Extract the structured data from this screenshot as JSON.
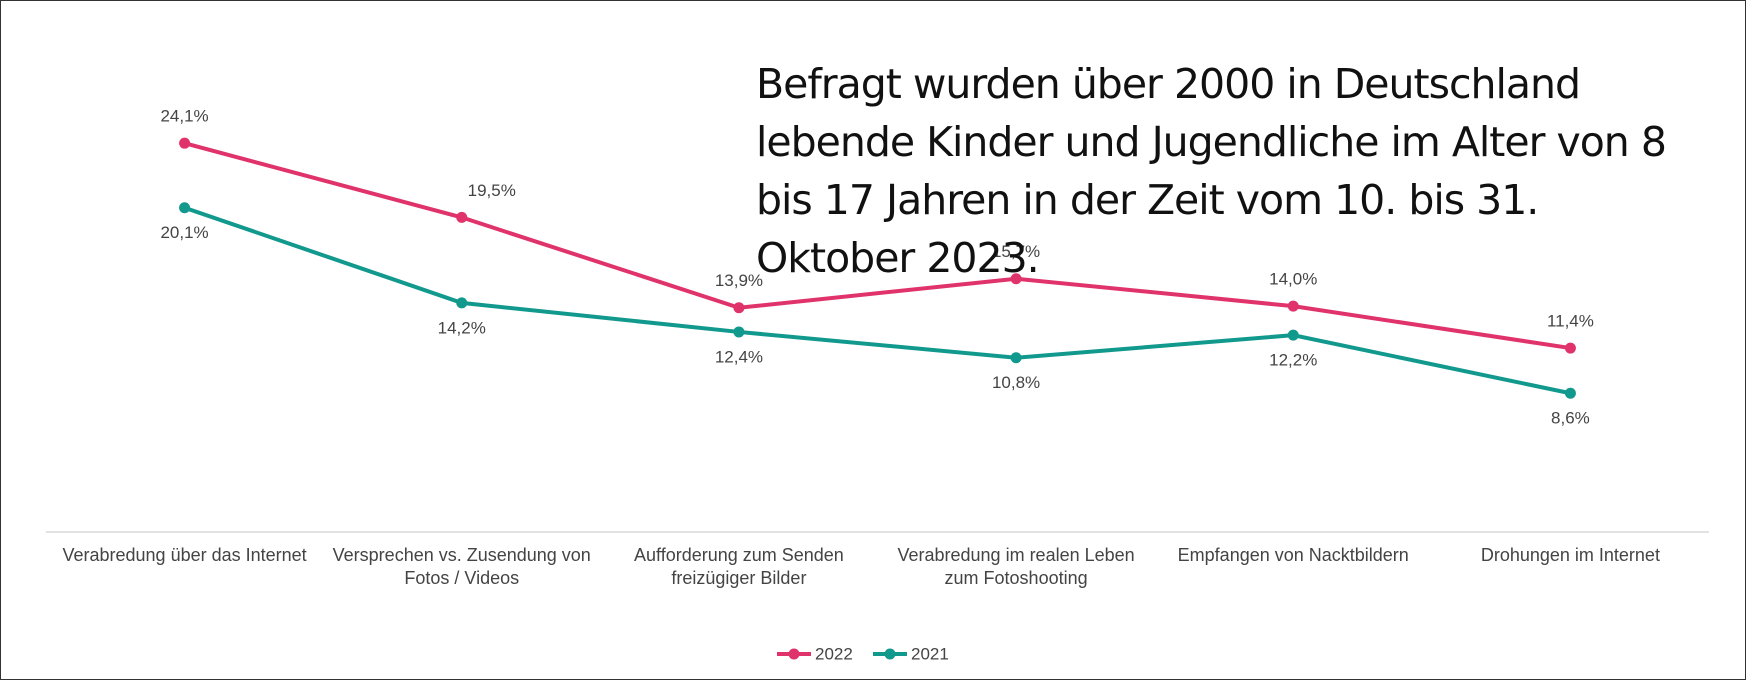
{
  "chart_data": {
    "type": "line",
    "annotation": "Befragt wurden über 2000 in Deutschland lebende Kinder und Jugendliche im Alter von 8 bis 17 Jahren in der Zeit vom 10. bis 31. Oktober 2023.",
    "categories": [
      "Verabredung über das Internet",
      "Versprechen vs. Zusendung von Fotos / Videos",
      "Aufforderung zum Senden freizügiger Bilder",
      "Verabredung im realen Leben zum Fotoshooting",
      "Empfangen von Nacktbildern",
      "Drohungen im Internet"
    ],
    "series": [
      {
        "name": "2022",
        "color": "#e0336b",
        "values": [
          24.1,
          19.5,
          13.9,
          15.7,
          14.0,
          11.4
        ],
        "value_labels": [
          "24,1%",
          "19,5%",
          "13,9%",
          "15,7%",
          "14,0%",
          "11,4%"
        ]
      },
      {
        "name": "2021",
        "color": "#12998d",
        "values": [
          20.1,
          14.2,
          12.4,
          10.8,
          12.2,
          8.6
        ],
        "value_labels": [
          "20,1%",
          "14,2%",
          "12,4%",
          "10,8%",
          "12,2%",
          "8,6%"
        ]
      }
    ],
    "ylim": [
      0,
      30
    ],
    "legend": "bottom"
  }
}
